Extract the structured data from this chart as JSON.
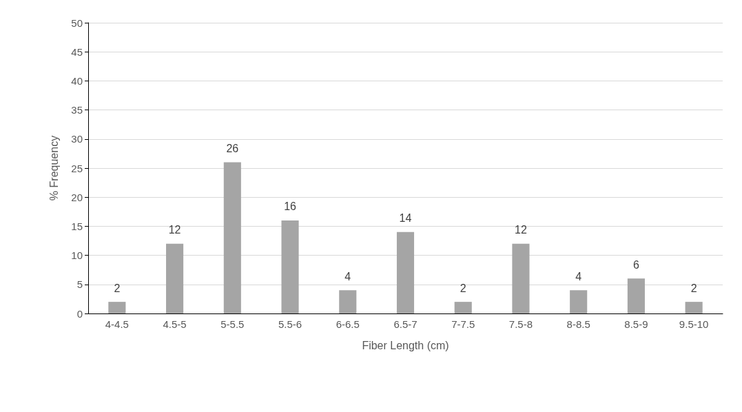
{
  "chart_data": {
    "type": "bar",
    "xlabel": "Fiber Length (cm)",
    "ylabel": "% Frequency",
    "categories": [
      "4-4.5",
      "4.5-5",
      "5-5.5",
      "5.5-6",
      "6-6.5",
      "6.5-7",
      "7-7.5",
      "7.5-8",
      "8-8.5",
      "8.5-9",
      "9.5-10"
    ],
    "values": [
      2,
      12,
      26,
      16,
      4,
      14,
      2,
      12,
      4,
      6,
      2
    ],
    "color": "#a5a5a5",
    "ylim": [
      0,
      50
    ],
    "yticks": [
      0,
      5,
      10,
      15,
      20,
      25,
      30,
      35,
      40,
      45,
      50
    ],
    "grid": "y",
    "data_labels": true
  }
}
